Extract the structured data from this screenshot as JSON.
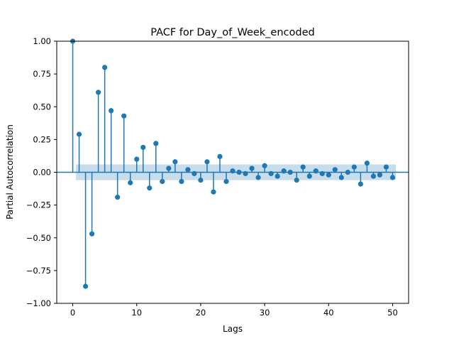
{
  "chart_data": {
    "type": "stem",
    "title": "PACF for Day_of_Week_encoded",
    "xlabel": "Lags",
    "ylabel": "Partial Autocorrelation",
    "xlim": [
      -2.5,
      52.5
    ],
    "ylim": [
      -1.0,
      1.0
    ],
    "xticks": [
      0,
      10,
      20,
      30,
      40,
      50
    ],
    "xtick_labels": [
      "0",
      "10",
      "20",
      "30",
      "40",
      "50"
    ],
    "yticks": [
      -1.0,
      -0.75,
      -0.5,
      -0.25,
      0.0,
      0.25,
      0.5,
      0.75,
      1.0
    ],
    "ytick_labels": [
      "−1.00",
      "−0.75",
      "−0.50",
      "−0.25",
      "0.00",
      "0.25",
      "0.50",
      "0.75",
      "1.00"
    ],
    "confidence_band": [
      -0.06,
      0.06
    ],
    "colors": {
      "stem": "#1f77b4",
      "band": "#1f77b4",
      "band_opacity": 0.25
    },
    "lags": [
      0,
      1,
      2,
      3,
      4,
      5,
      6,
      7,
      8,
      9,
      10,
      11,
      12,
      13,
      14,
      15,
      16,
      17,
      18,
      19,
      20,
      21,
      22,
      23,
      24,
      25,
      26,
      27,
      28,
      29,
      30,
      31,
      32,
      33,
      34,
      35,
      36,
      37,
      38,
      39,
      40,
      41,
      42,
      43,
      44,
      45,
      46,
      47,
      48,
      49,
      50
    ],
    "values": [
      1.0,
      0.29,
      -0.87,
      -0.47,
      0.61,
      0.8,
      0.47,
      -0.19,
      0.43,
      -0.08,
      0.1,
      0.19,
      -0.12,
      0.22,
      -0.07,
      0.03,
      0.08,
      -0.07,
      0.02,
      -0.01,
      -0.06,
      0.08,
      -0.15,
      0.12,
      -0.07,
      0.01,
      0.0,
      -0.01,
      0.03,
      -0.04,
      0.05,
      -0.01,
      -0.03,
      0.01,
      0.0,
      -0.06,
      0.04,
      -0.03,
      0.01,
      -0.01,
      -0.02,
      0.02,
      -0.04,
      0.0,
      0.04,
      -0.09,
      0.07,
      -0.03,
      -0.02,
      0.04,
      -0.04
    ],
    "grid": false,
    "legend": "none"
  }
}
